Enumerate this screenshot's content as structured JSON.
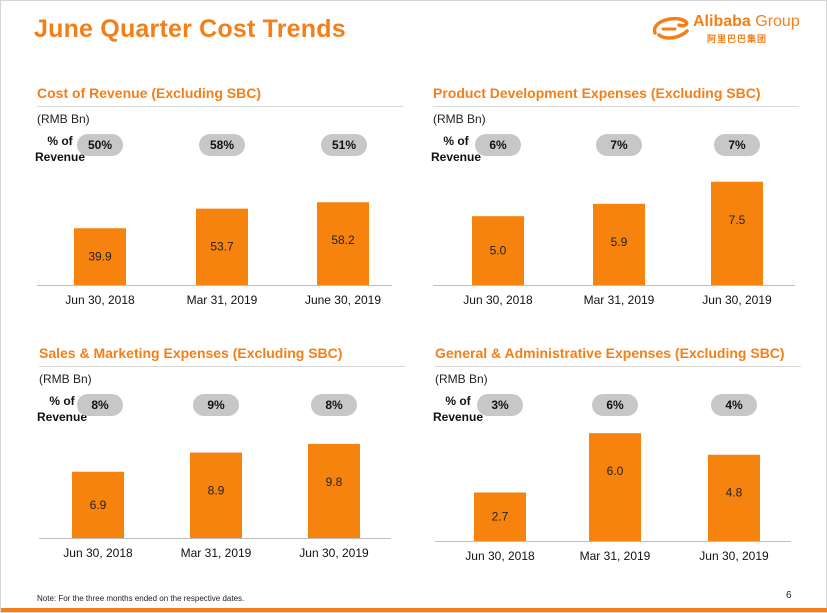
{
  "page": {
    "title": "June Quarter Cost Trends",
    "note": "Note: For the three months ended on the respective dates.",
    "page_number": "6"
  },
  "logo": {
    "brand": "Alibaba",
    "group": " Group",
    "sub": "阿里巴巴集团"
  },
  "colors": {
    "accent": "#f57f17",
    "bar": "#f7830f",
    "pill": "#c7c7c7"
  },
  "chart_data": [
    {
      "type": "bar",
      "title": "Cost of Revenue (Excluding SBC)",
      "unit": "(RMB Bn)",
      "pct_label": "% of Revenue",
      "categories": [
        "Jun 30, 2018",
        "Mar 31, 2019",
        "June 30, 2019"
      ],
      "values": [
        39.9,
        53.7,
        58.2
      ],
      "value_labels": [
        "39.9",
        "53.7",
        "58.2"
      ],
      "pct_of_revenue": [
        "50%",
        "58%",
        "51%"
      ],
      "ylim": [
        0,
        90
      ]
    },
    {
      "type": "bar",
      "title": "Product Development Expenses (Excluding SBC)",
      "unit": "(RMB Bn)",
      "pct_label": "% of Revenue",
      "categories": [
        "Jun 30, 2018",
        "Mar 31, 2019",
        "Jun 30, 2019"
      ],
      "values": [
        5.0,
        5.9,
        7.5
      ],
      "value_labels": [
        "5.0",
        "5.9",
        "7.5"
      ],
      "pct_of_revenue": [
        "6%",
        "7%",
        "7%"
      ],
      "ylim": [
        0,
        9.3
      ]
    },
    {
      "type": "bar",
      "title": "Sales & Marketing Expenses (Excluding SBC)",
      "unit": "(RMB Bn)",
      "pct_label": "% of Revenue",
      "categories": [
        "Jun 30, 2018",
        "Mar 31, 2019",
        "Jun 30, 2019"
      ],
      "values": [
        6.9,
        8.9,
        9.8
      ],
      "value_labels": [
        "6.9",
        "8.9",
        "9.8"
      ],
      "pct_of_revenue": [
        "8%",
        "9%",
        "8%"
      ],
      "ylim": [
        0,
        12.6
      ]
    },
    {
      "type": "bar",
      "title": "General & Administrative Expenses (Excluding SBC)",
      "unit": "(RMB Bn)",
      "pct_label": "% of Revenue",
      "categories": [
        "Jun 30, 2018",
        "Mar 31, 2019",
        "Jun 30, 2019"
      ],
      "values": [
        2.7,
        6.0,
        4.8
      ],
      "value_labels": [
        "2.7",
        "6.0",
        "4.8"
      ],
      "pct_of_revenue": [
        "3%",
        "6%",
        "4%"
      ],
      "ylim": [
        0,
        6.9
      ]
    }
  ]
}
